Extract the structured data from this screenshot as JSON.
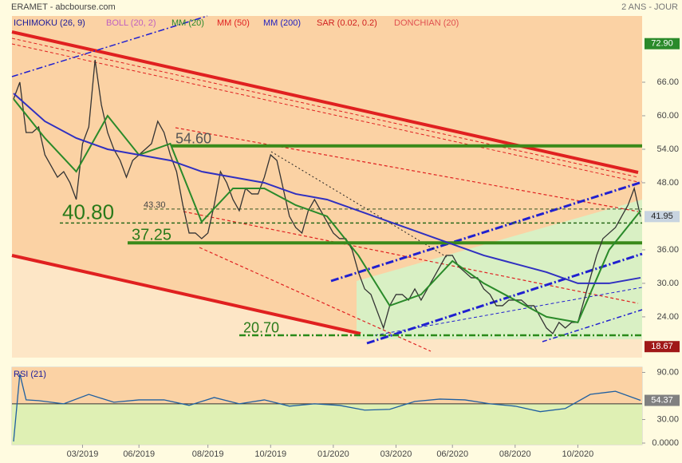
{
  "header": {
    "title": "ERAMET - abcbourse.com",
    "period": "2 ANS - JOUR"
  },
  "chart_data": [
    {
      "type": "line",
      "legend": [
        {
          "name": "ICHIMOKU (26, 9)",
          "color": "#1a1a9a"
        },
        {
          "name": "BOLL (20, 2)",
          "color": "#c060c0"
        },
        {
          "name": "MM (20)",
          "color": "#2a8a2a"
        },
        {
          "name": "MM (50)",
          "color": "#e02020"
        },
        {
          "name": "MM (200)",
          "color": "#2020c0"
        },
        {
          "name": "SAR (0.02, 0.2)",
          "color": "#d02020"
        },
        {
          "name": "DONCHIAN (20)",
          "color": "#e05050"
        }
      ],
      "xlim": [
        0,
        100
      ],
      "ylim": [
        16.7,
        77.86
      ],
      "yticks": [
        {
          "value": 24,
          "label": "24.00"
        },
        {
          "value": 30,
          "label": "30.00"
        },
        {
          "value": 36,
          "label": "36.00"
        },
        {
          "value": 48,
          "label": "48.00"
        },
        {
          "value": 54,
          "label": "54.00"
        },
        {
          "value": 60,
          "label": "60.00"
        },
        {
          "value": 66,
          "label": "66.00"
        }
      ],
      "highlights": [
        {
          "value": 72.9,
          "label": "72.90",
          "color": "#2a8a2a"
        },
        {
          "value": 41.95,
          "label": "41.95",
          "color": "#c8d4e0"
        },
        {
          "value": 18.67,
          "label": "18.67",
          "color": "#a01818"
        }
      ],
      "levels": [
        {
          "value": 54.6,
          "label": "54.60"
        },
        {
          "value": 43.3,
          "label": "43.30"
        },
        {
          "value": 40.8,
          "label": "40.80"
        },
        {
          "value": 37.25,
          "label": "37.25"
        },
        {
          "value": 20.7,
          "label": "20.70"
        }
      ],
      "series": [
        {
          "color": "#333333",
          "values": [
            63,
            66,
            57,
            57,
            58,
            53,
            51,
            49,
            50,
            48,
            45,
            55,
            58,
            70,
            62,
            57,
            54,
            52,
            49,
            52,
            53,
            54,
            55,
            59,
            57,
            53,
            50,
            44,
            39,
            39,
            38,
            39,
            44,
            50,
            48,
            45,
            43,
            47,
            46,
            46,
            49,
            53,
            52,
            47,
            42,
            40,
            39,
            43,
            45,
            43,
            41,
            39,
            38,
            38,
            36,
            32,
            29,
            28,
            25,
            22,
            26,
            28,
            28,
            27,
            29,
            27,
            29,
            31,
            33,
            35,
            35,
            33,
            32,
            31,
            31,
            29,
            28,
            26,
            26,
            27,
            27,
            27,
            26,
            26,
            24,
            22,
            21,
            23,
            22,
            23,
            23,
            27,
            31,
            35,
            38,
            39,
            40,
            42,
            44,
            47,
            41.95
          ]
        },
        {
          "color": "#2a8a2a",
          "x": [
            0,
            5,
            10,
            15,
            20,
            25,
            30,
            35,
            40,
            45,
            50,
            55,
            60,
            65,
            70,
            75,
            80,
            85,
            90,
            95,
            100
          ],
          "values": [
            63,
            56,
            50,
            60,
            53,
            55,
            41,
            47,
            47,
            44,
            42,
            35,
            26,
            28,
            34,
            30,
            27,
            24,
            23,
            36,
            43
          ]
        },
        {
          "color": "#3030c0",
          "x": [
            0,
            5,
            10,
            15,
            20,
            25,
            30,
            35,
            40,
            45,
            50,
            55,
            60,
            65,
            70,
            75,
            80,
            85,
            90,
            95,
            100
          ],
          "values": [
            64,
            59,
            56,
            54,
            53,
            52,
            50,
            49,
            48,
            46,
            45,
            43,
            41,
            39,
            37,
            35,
            33.5,
            32,
            30,
            30,
            31
          ]
        }
      ]
    },
    {
      "type": "line",
      "title": "RSI (21)",
      "xlim": [
        0,
        100
      ],
      "xticks": [
        {
          "value": 11,
          "label": "03/2019"
        },
        {
          "value": 20,
          "label": "06/2019"
        },
        {
          "value": 31,
          "label": "08/2019"
        },
        {
          "value": 41,
          "label": "10/2019"
        },
        {
          "value": 51,
          "label": "01/2020"
        },
        {
          "value": 61,
          "label": "03/2020"
        },
        {
          "value": 70,
          "label": "06/2020"
        },
        {
          "value": 80,
          "label": "08/2020"
        },
        {
          "value": 90,
          "label": "10/2020"
        }
      ],
      "ylim": [
        -2,
        96.6
      ],
      "yticks": [
        {
          "value": 0,
          "label": "0.0000"
        },
        {
          "value": 30,
          "label": "30.00"
        },
        {
          "value": 90,
          "label": "90.00"
        }
      ],
      "level": 50,
      "highlights": [
        {
          "value": 54.37,
          "label": "54.37",
          "color": "#808080"
        }
      ],
      "series": [
        {
          "color": "#1f5fa0",
          "x": [
            0,
            1,
            2,
            4,
            8,
            12,
            16,
            20,
            24,
            28,
            32,
            36,
            40,
            44,
            48,
            52,
            56,
            60,
            64,
            68,
            72,
            76,
            80,
            84,
            88,
            92,
            96,
            100
          ],
          "values": [
            2,
            88,
            55,
            54,
            50,
            62,
            52,
            55,
            55,
            48,
            58,
            50,
            55,
            47,
            50,
            48,
            42,
            43,
            53,
            56,
            55,
            50,
            47,
            40,
            44,
            62,
            66,
            54.37
          ]
        }
      ]
    }
  ]
}
